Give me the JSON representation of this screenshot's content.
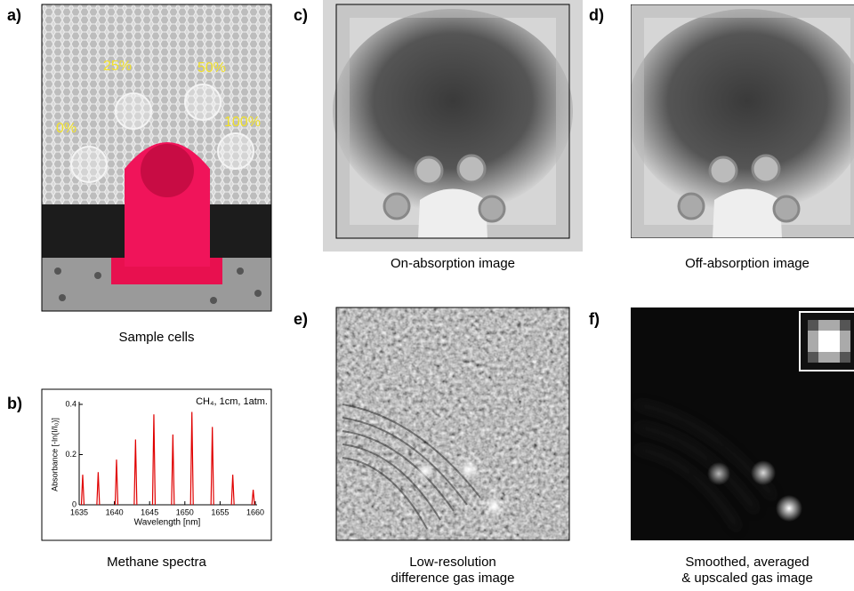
{
  "panels": {
    "a": {
      "label": "a)",
      "caption": "Sample cells",
      "cell_labels": [
        "0%",
        "25%",
        "50%",
        "100%"
      ]
    },
    "b": {
      "label": "b)",
      "caption": "Methane spectra"
    },
    "c": {
      "label": "c)",
      "caption": "On-absorption image"
    },
    "d": {
      "label": "d)",
      "caption": "Off-absorption image"
    },
    "e": {
      "label": "e)",
      "caption": [
        "Low-resolution",
        "difference gas image"
      ]
    },
    "f": {
      "label": "f)",
      "caption": [
        "Smoothed, averaged",
        "& upscaled gas image"
      ]
    }
  },
  "chart_data": {
    "type": "line",
    "annotation": "CH₄, 1cm, 1atm.",
    "xlabel": "Wavelength [nm]",
    "ylabel": "Absorbance [-ln(I/I₀)]",
    "x": [
      1635.5,
      1637.7,
      1640.3,
      1643.0,
      1645.6,
      1648.3,
      1651.0,
      1653.9,
      1656.8,
      1659.7
    ],
    "values": [
      0.12,
      0.13,
      0.18,
      0.26,
      0.36,
      0.28,
      0.37,
      0.31,
      0.12,
      0.06
    ],
    "color": "#e00000",
    "xlim": [
      1635,
      1660
    ],
    "ylim": [
      0,
      0.4
    ],
    "xticks": [
      1635,
      1640,
      1645,
      1650,
      1655,
      1660
    ],
    "yticks": [
      0,
      0.2,
      0.4
    ]
  }
}
